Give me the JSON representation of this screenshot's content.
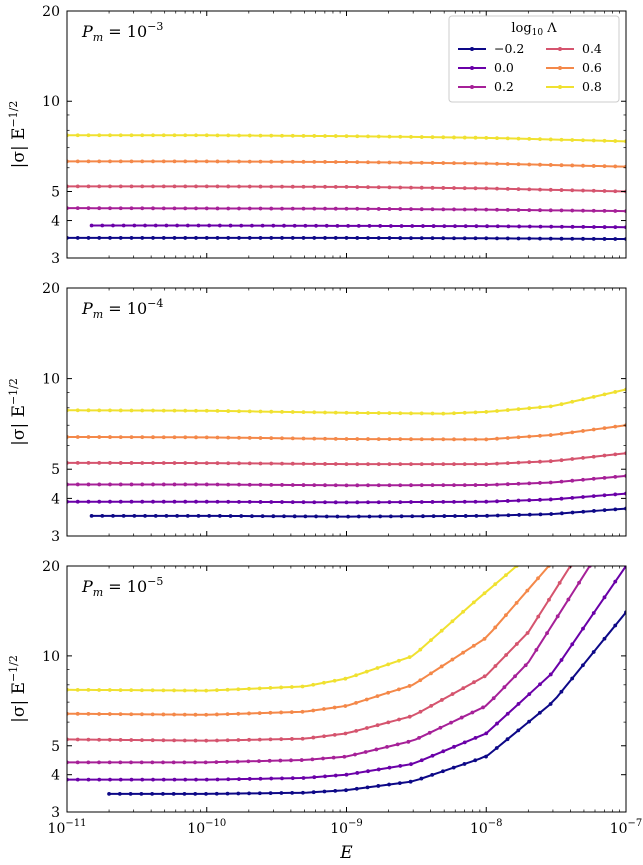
{
  "chart_data": {
    "type": "line",
    "xscale": "log",
    "yscale": "log",
    "xlim": [
      1e-11,
      1e-07
    ],
    "ylim": [
      3,
      20
    ],
    "xticks": [
      {
        "value": 1e-11,
        "base": "10",
        "exp": "−11"
      },
      {
        "value": 1e-10,
        "base": "10",
        "exp": "−10"
      },
      {
        "value": 1e-09,
        "base": "10",
        "exp": "−9"
      },
      {
        "value": 1e-08,
        "base": "10",
        "exp": "−8"
      },
      {
        "value": 1e-07,
        "base": "10",
        "exp": "−7"
      }
    ],
    "yticks": [
      {
        "value": 3,
        "label": "3"
      },
      {
        "value": 4,
        "label": "4"
      },
      {
        "value": 5,
        "label": "5"
      },
      {
        "value": 10,
        "label": "10"
      },
      {
        "value": 20,
        "label": "20"
      }
    ],
    "xlabel": "E",
    "ylabel": "|σ| E",
    "ylabel_exp": "−1/2",
    "legend": {
      "title": "log",
      "title_sub": "10",
      "title_symbol": "Λ",
      "placement": "top-right of first panel"
    },
    "series_styles": [
      {
        "name": "−0.2",
        "color": "#0d0887"
      },
      {
        "name": "0.0",
        "color": "#6a00a8"
      },
      {
        "name": "0.2",
        "color": "#a62098"
      },
      {
        "name": "0.4",
        "color": "#d5546e"
      },
      {
        "name": "0.6",
        "color": "#f48849"
      },
      {
        "name": "0.8",
        "color": "#f0e130"
      }
    ],
    "panels": [
      {
        "title_main": "P",
        "title_sub": "m",
        "title_eq": " = 10",
        "title_exp": "−3",
        "series": [
          {
            "name": "−0.2",
            "xstart": 1e-11,
            "points": [
              [
                1e-11,
                3.5
              ],
              [
                1e-10,
                3.5
              ],
              [
                1e-09,
                3.5
              ],
              [
                1e-08,
                3.49
              ],
              [
                1e-07,
                3.47
              ]
            ]
          },
          {
            "name": "0.0",
            "xstart": 1.5e-11,
            "points": [
              [
                1.5e-11,
                3.85
              ],
              [
                1e-10,
                3.85
              ],
              [
                1e-09,
                3.84
              ],
              [
                1e-08,
                3.83
              ],
              [
                1e-07,
                3.8
              ]
            ]
          },
          {
            "name": "0.2",
            "xstart": 1e-11,
            "points": [
              [
                1e-11,
                4.4
              ],
              [
                1e-10,
                4.39
              ],
              [
                1e-09,
                4.38
              ],
              [
                1e-08,
                4.35
              ],
              [
                1e-07,
                4.3
              ]
            ]
          },
          {
            "name": "0.4",
            "xstart": 1e-11,
            "points": [
              [
                1e-11,
                5.2
              ],
              [
                1e-10,
                5.2
              ],
              [
                1e-09,
                5.18
              ],
              [
                1e-08,
                5.12
              ],
              [
                1e-07,
                5.0
              ]
            ]
          },
          {
            "name": "0.6",
            "xstart": 1e-11,
            "points": [
              [
                1e-11,
                6.3
              ],
              [
                1e-10,
                6.3
              ],
              [
                1e-09,
                6.27
              ],
              [
                1e-08,
                6.2
              ],
              [
                1e-07,
                6.05
              ]
            ]
          },
          {
            "name": "0.8",
            "xstart": 1e-11,
            "points": [
              [
                1e-11,
                7.7
              ],
              [
                1e-10,
                7.7
              ],
              [
                1e-09,
                7.65
              ],
              [
                1e-08,
                7.55
              ],
              [
                1e-07,
                7.35
              ]
            ]
          }
        ]
      },
      {
        "title_main": "P",
        "title_sub": "m",
        "title_eq": " = 10",
        "title_exp": "−4",
        "series": [
          {
            "name": "−0.2",
            "xstart": 1.5e-11,
            "points": [
              [
                1.5e-11,
                3.5
              ],
              [
                1e-10,
                3.5
              ],
              [
                1e-09,
                3.48
              ],
              [
                1e-08,
                3.5
              ],
              [
                3e-08,
                3.55
              ],
              [
                1e-07,
                3.7
              ]
            ]
          },
          {
            "name": "0.0",
            "xstart": 1e-11,
            "points": [
              [
                1e-11,
                3.9
              ],
              [
                1e-10,
                3.9
              ],
              [
                1e-09,
                3.88
              ],
              [
                1e-08,
                3.9
              ],
              [
                3e-08,
                3.97
              ],
              [
                1e-07,
                4.15
              ]
            ]
          },
          {
            "name": "0.2",
            "xstart": 1e-11,
            "points": [
              [
                1e-11,
                4.45
              ],
              [
                1e-10,
                4.45
              ],
              [
                1e-09,
                4.42
              ],
              [
                1e-08,
                4.43
              ],
              [
                3e-08,
                4.52
              ],
              [
                1e-07,
                4.75
              ]
            ]
          },
          {
            "name": "0.4",
            "xstart": 1e-11,
            "points": [
              [
                1e-11,
                5.25
              ],
              [
                1e-10,
                5.24
              ],
              [
                1e-09,
                5.2
              ],
              [
                1e-08,
                5.2
              ],
              [
                3e-08,
                5.32
              ],
              [
                1e-07,
                5.65
              ]
            ]
          },
          {
            "name": "0.6",
            "xstart": 1e-11,
            "points": [
              [
                1e-11,
                6.4
              ],
              [
                1e-10,
                6.38
              ],
              [
                1e-09,
                6.3
              ],
              [
                1e-08,
                6.28
              ],
              [
                3e-08,
                6.5
              ],
              [
                1e-07,
                7.0
              ]
            ]
          },
          {
            "name": "0.8",
            "xstart": 1e-11,
            "points": [
              [
                1e-11,
                7.85
              ],
              [
                1e-10,
                7.82
              ],
              [
                1e-09,
                7.7
              ],
              [
                5e-09,
                7.65
              ],
              [
                1e-08,
                7.75
              ],
              [
                3e-08,
                8.1
              ],
              [
                1e-07,
                9.2
              ]
            ]
          }
        ]
      },
      {
        "title_main": "P",
        "title_sub": "m",
        "title_eq": " = 10",
        "title_exp": "−5",
        "series": [
          {
            "name": "−0.2",
            "xstart": 2e-11,
            "points": [
              [
                2e-11,
                3.45
              ],
              [
                1e-10,
                3.45
              ],
              [
                5e-10,
                3.48
              ],
              [
                1e-09,
                3.55
              ],
              [
                3e-09,
                3.8
              ],
              [
                1e-08,
                4.6
              ],
              [
                3e-08,
                7.0
              ],
              [
                1e-07,
                14.0
              ]
            ]
          },
          {
            "name": "0.0",
            "xstart": 1e-11,
            "points": [
              [
                1e-11,
                3.85
              ],
              [
                1e-10,
                3.85
              ],
              [
                5e-10,
                3.9
              ],
              [
                1e-09,
                4.0
              ],
              [
                3e-09,
                4.35
              ],
              [
                1e-08,
                5.5
              ],
              [
                3e-08,
                8.8
              ],
              [
                1e-07,
                20.0
              ]
            ]
          },
          {
            "name": "0.2",
            "xstart": 1e-11,
            "points": [
              [
                1e-11,
                4.4
              ],
              [
                1e-10,
                4.4
              ],
              [
                5e-10,
                4.48
              ],
              [
                1e-09,
                4.6
              ],
              [
                3e-09,
                5.2
              ],
              [
                1e-08,
                6.8
              ],
              [
                2e-08,
                9.5
              ],
              [
                5.5e-08,
                20.0
              ]
            ]
          },
          {
            "name": "0.4",
            "xstart": 1e-11,
            "points": [
              [
                1e-11,
                5.25
              ],
              [
                1e-10,
                5.2
              ],
              [
                5e-10,
                5.28
              ],
              [
                1e-09,
                5.5
              ],
              [
                3e-09,
                6.3
              ],
              [
                1e-08,
                8.6
              ],
              [
                2e-08,
                12.0
              ],
              [
                4e-08,
                20.0
              ]
            ]
          },
          {
            "name": "0.6",
            "xstart": 1e-11,
            "points": [
              [
                1e-11,
                6.4
              ],
              [
                1e-10,
                6.35
              ],
              [
                5e-10,
                6.5
              ],
              [
                1e-09,
                6.8
              ],
              [
                3e-09,
                8.0
              ],
              [
                1e-08,
                11.5
              ],
              [
                2.8e-08,
                20.0
              ]
            ]
          },
          {
            "name": "0.8",
            "xstart": 1e-11,
            "points": [
              [
                1e-11,
                7.7
              ],
              [
                1e-10,
                7.65
              ],
              [
                5e-10,
                7.9
              ],
              [
                1e-09,
                8.4
              ],
              [
                3e-09,
                10.0
              ],
              [
                8e-09,
                15.0
              ],
              [
                1.65e-08,
                20.0
              ]
            ]
          }
        ]
      }
    ]
  }
}
